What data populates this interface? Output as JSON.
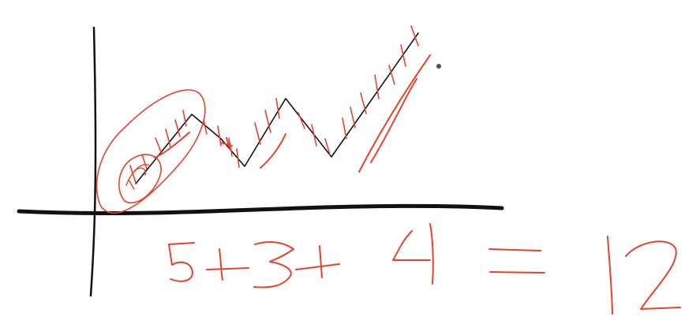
{
  "sketch": {
    "ink_colors": {
      "black": "#111111",
      "red": "#e8412c",
      "dot": "#7a3b4a"
    },
    "equation": {
      "terms": [
        "5",
        "+",
        "3",
        "+",
        "4",
        "=",
        "12"
      ]
    }
  }
}
